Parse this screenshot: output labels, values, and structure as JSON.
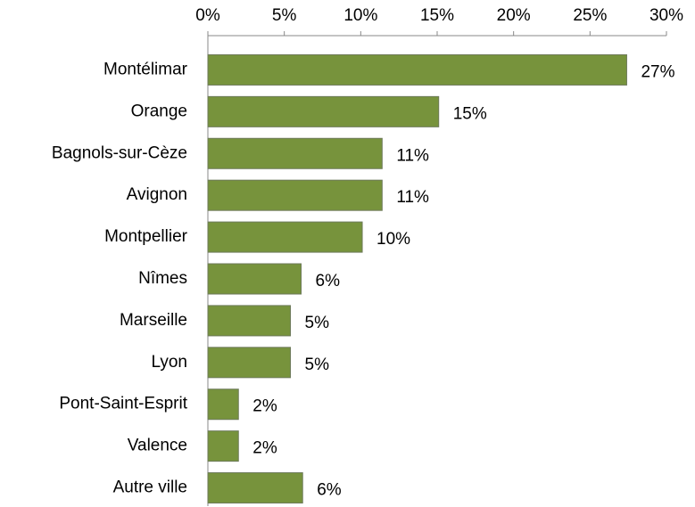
{
  "chart_data": {
    "type": "bar",
    "categories": [
      "Montélimar",
      "Orange",
      "Bagnols-sur-Cèze",
      "Avignon",
      "Montpellier",
      "Nîmes",
      "Marseille",
      "Lyon",
      "Pont-Saint-Esprit",
      "Valence",
      "Autre ville"
    ],
    "values": [
      27.4,
      15.1,
      11.4,
      11.4,
      10.1,
      6.1,
      5.4,
      5.4,
      2.0,
      2.0,
      6.2
    ],
    "value_labels": [
      "27%",
      "15%",
      "11%",
      "11%",
      "10%",
      "6%",
      "5%",
      "5%",
      "2%",
      "2%",
      "6%"
    ],
    "color": "#77933c",
    "xlim": [
      0,
      30
    ],
    "xticks": [
      {
        "value": 0,
        "label": "0%"
      },
      {
        "value": 5,
        "label": "5%"
      },
      {
        "value": 10,
        "label": "10%"
      },
      {
        "value": 15,
        "label": "15%"
      },
      {
        "value": 20,
        "label": "20%"
      },
      {
        "value": 25,
        "label": "25%"
      },
      {
        "value": 30,
        "label": "30%"
      }
    ]
  }
}
